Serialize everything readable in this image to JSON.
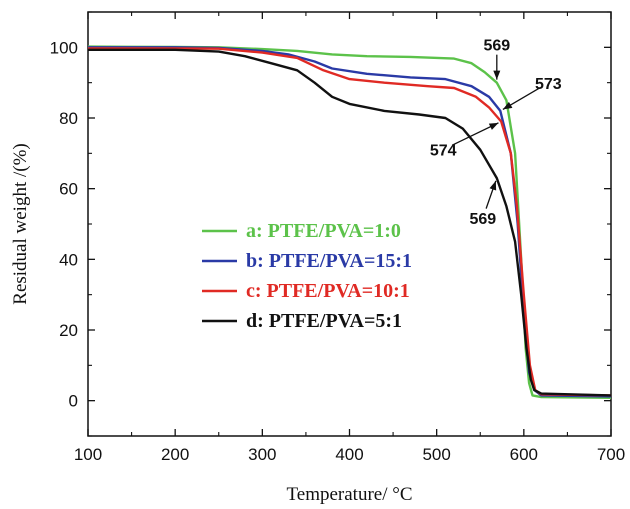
{
  "chart_data": {
    "type": "line",
    "xlabel": "Temperature/ °C",
    "ylabel": "Residual weight /(%)",
    "xlim": [
      100,
      700
    ],
    "ylim": [
      -10,
      110
    ],
    "xticks": [
      100,
      200,
      300,
      400,
      500,
      600,
      700
    ],
    "yticks": [
      0,
      20,
      40,
      60,
      80,
      100
    ],
    "grid": false,
    "legend_position": "center-left",
    "series": [
      {
        "name": "a: PTFE/PVA=1:0",
        "color": "#5cc24a",
        "points": [
          [
            100,
            100.2
          ],
          [
            200,
            100.1
          ],
          [
            250,
            100
          ],
          [
            300,
            99.5
          ],
          [
            340,
            99
          ],
          [
            380,
            98
          ],
          [
            420,
            97.5
          ],
          [
            470,
            97.3
          ],
          [
            520,
            96.8
          ],
          [
            540,
            95.5
          ],
          [
            555,
            93
          ],
          [
            569,
            90
          ],
          [
            580,
            85
          ],
          [
            590,
            70
          ],
          [
            597,
            40
          ],
          [
            602,
            15
          ],
          [
            606,
            5
          ],
          [
            610,
            1.5
          ],
          [
            620,
            1
          ],
          [
            700,
            0.8
          ]
        ]
      },
      {
        "name": "b: PTFE/PVA=15:1",
        "color": "#2a3aa6",
        "points": [
          [
            100,
            100
          ],
          [
            200,
            100
          ],
          [
            250,
            99.8
          ],
          [
            300,
            99
          ],
          [
            330,
            98
          ],
          [
            360,
            96
          ],
          [
            380,
            94
          ],
          [
            420,
            92.5
          ],
          [
            470,
            91.5
          ],
          [
            510,
            91
          ],
          [
            540,
            89
          ],
          [
            560,
            86
          ],
          [
            573,
            82
          ],
          [
            585,
            70
          ],
          [
            593,
            50
          ],
          [
            600,
            25
          ],
          [
            606,
            8
          ],
          [
            612,
            3
          ],
          [
            620,
            1.5
          ],
          [
            700,
            1.2
          ]
        ]
      },
      {
        "name": "c: PTFE/PVA=10:1",
        "color": "#e02a24",
        "points": [
          [
            100,
            99.7
          ],
          [
            200,
            99.7
          ],
          [
            250,
            99.6
          ],
          [
            300,
            98.5
          ],
          [
            340,
            97
          ],
          [
            370,
            93.5
          ],
          [
            400,
            91
          ],
          [
            440,
            90
          ],
          [
            490,
            89
          ],
          [
            520,
            88.5
          ],
          [
            545,
            86
          ],
          [
            560,
            83
          ],
          [
            574,
            79
          ],
          [
            585,
            70
          ],
          [
            592,
            55
          ],
          [
            600,
            30
          ],
          [
            607,
            10
          ],
          [
            613,
            3
          ],
          [
            620,
            1.8
          ],
          [
            700,
            1.5
          ]
        ]
      },
      {
        "name": "d: PTFE/PVA=5:1",
        "color": "#111111",
        "points": [
          [
            100,
            99.3
          ],
          [
            200,
            99.3
          ],
          [
            250,
            98.8
          ],
          [
            280,
            97.5
          ],
          [
            310,
            95.5
          ],
          [
            340,
            93.5
          ],
          [
            360,
            90
          ],
          [
            380,
            86
          ],
          [
            400,
            84
          ],
          [
            440,
            82
          ],
          [
            480,
            81
          ],
          [
            510,
            80
          ],
          [
            530,
            77
          ],
          [
            550,
            71
          ],
          [
            569,
            63
          ],
          [
            580,
            55
          ],
          [
            590,
            45
          ],
          [
            597,
            30
          ],
          [
            603,
            15
          ],
          [
            608,
            6
          ],
          [
            612,
            3
          ],
          [
            620,
            2
          ],
          [
            700,
            1.5
          ]
        ]
      }
    ],
    "annotations": [
      {
        "text": "569",
        "series": "a",
        "x": 569,
        "y": 90
      },
      {
        "text": "573",
        "series": "b",
        "x": 573,
        "y": 82
      },
      {
        "text": "574",
        "series": "c",
        "x": 574,
        "y": 79
      },
      {
        "text": "569",
        "series": "d",
        "x": 569,
        "y": 63
      }
    ]
  }
}
